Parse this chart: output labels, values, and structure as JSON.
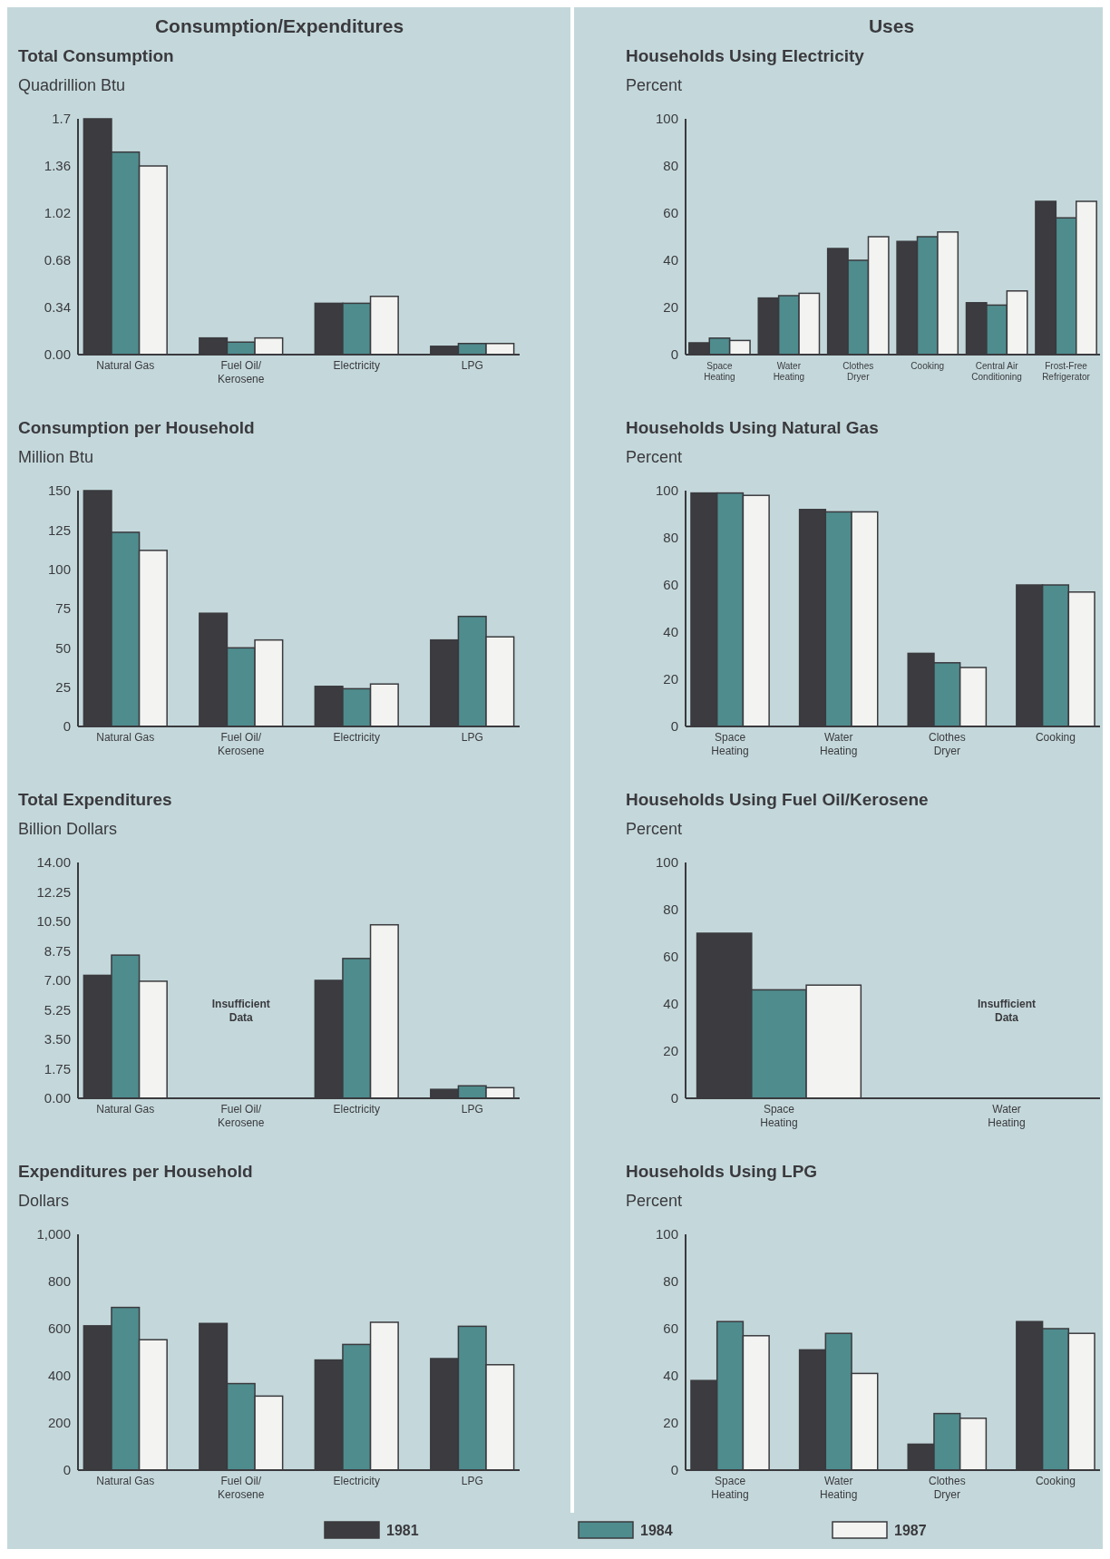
{
  "chart_data": [
    {
      "type": "bar",
      "title": "Total Consumption",
      "ylabel": "Quadrillion Btu",
      "annotations": [
        "Consumption/Expenditures"
      ],
      "categories": [
        "Natural Gas",
        "Fuel Oil/ Kerosene",
        "Electricity",
        "LPG"
      ],
      "series": [
        {
          "color": "#3b3b40",
          "values": [
            1.7,
            0.12,
            0.37,
            0.06
          ]
        },
        {
          "color": "#4f8c8e",
          "values": [
            1.46,
            0.09,
            0.37,
            0.08
          ]
        },
        {
          "color": "#f3f3f1",
          "values": [
            1.36,
            0.12,
            0.42,
            0.08
          ]
        }
      ],
      "ylim": [
        0,
        1.7
      ],
      "yticks": [
        {
          "value": 0,
          "label": "0.00"
        },
        0.34,
        0.68,
        1.02,
        1.36,
        1.7
      ]
    },
    {
      "type": "bar",
      "title": "Consumption per Household",
      "ylabel": "Million Btu",
      "categories": [
        "Natural Gas",
        "Fuel Oil/ Kerosene",
        "Electricity",
        "LPG"
      ],
      "series": [
        {
          "color": "#3b3b40",
          "values": [
            150,
            72,
            25.5,
            55
          ]
        },
        {
          "color": "#4f8c8e",
          "values": [
            123.5,
            50,
            24,
            70
          ]
        },
        {
          "color": "#f3f3f1",
          "values": [
            112,
            55,
            27,
            57
          ]
        }
      ],
      "ylim": [
        0,
        150
      ],
      "yticks": [
        0,
        25,
        50,
        75,
        100,
        125,
        150
      ]
    },
    {
      "type": "bar",
      "title": "Total Expenditures",
      "ylabel": "Billion Dollars",
      "annotations": [
        "Insufficient Data"
      ],
      "categories": [
        "Natural Gas",
        "Fuel Oil/ Kerosene",
        "Electricity",
        "LPG"
      ],
      "series": [
        {
          "color": "#3b3b40",
          "values": [
            7.3,
            null,
            7.0,
            0.53
          ]
        },
        {
          "color": "#4f8c8e",
          "values": [
            8.5,
            null,
            8.3,
            0.74
          ]
        },
        {
          "color": "#f3f3f1",
          "values": [
            6.95,
            null,
            10.3,
            0.63
          ]
        }
      ],
      "ylim": [
        0,
        14
      ],
      "yticks": [
        {
          "value": 0,
          "label": "0.00"
        },
        {
          "value": 1.75,
          "label": "1.75"
        },
        {
          "value": 3.5,
          "label": "3.50"
        },
        {
          "value": 5.25,
          "label": "5.25"
        },
        {
          "value": 7,
          "label": "7.00"
        },
        {
          "value": 8.75,
          "label": "8.75"
        },
        {
          "value": 10.5,
          "label": "10.50"
        },
        {
          "value": 12.25,
          "label": "12.25"
        },
        {
          "value": 14,
          "label": "14.00"
        }
      ]
    },
    {
      "type": "bar",
      "title": "Expenditures per Household",
      "ylabel": "Dollars",
      "legend": "bottom",
      "categories": [
        "Natural Gas",
        "Fuel Oil/ Kerosene",
        "Electricity",
        "LPG"
      ],
      "series": [
        {
          "name": "1981",
          "color": "#3b3b40",
          "values": [
            612,
            622,
            467,
            473
          ]
        },
        {
          "name": "1984",
          "color": "#4f8c8e",
          "values": [
            690,
            367,
            533,
            610
          ]
        },
        {
          "name": "1987",
          "color": "#f3f3f1",
          "values": [
            553,
            314,
            627,
            447
          ]
        }
      ],
      "ylim": [
        0,
        1000
      ],
      "yticks": [
        0,
        200,
        400,
        600,
        800,
        {
          "value": 1000,
          "label": "1,000"
        }
      ]
    },
    {
      "type": "bar",
      "title": "Households Using Electricity",
      "ylabel": "Percent",
      "annotations": [
        "Uses"
      ],
      "categories": [
        "Space Heating",
        "Water Heating",
        "Clothes Dryer",
        "Cooking",
        "Central Air Conditioning",
        "Frost-Free Refrigerator"
      ],
      "series": [
        {
          "color": "#3b3b40",
          "values": [
            5,
            24,
            45,
            48,
            22,
            65
          ]
        },
        {
          "color": "#4f8c8e",
          "values": [
            7,
            25,
            40,
            50,
            21,
            58
          ]
        },
        {
          "color": "#f3f3f1",
          "values": [
            6,
            26,
            50,
            52,
            27,
            65
          ]
        }
      ],
      "ylim": [
        0,
        100
      ],
      "yticks": [
        0,
        20,
        40,
        60,
        80,
        100
      ]
    },
    {
      "type": "bar",
      "title": "Households Using Natural Gas",
      "ylabel": "Percent",
      "categories": [
        "Space Heating",
        "Water Heating",
        "Clothes Dryer",
        "Cooking"
      ],
      "series": [
        {
          "color": "#3b3b40",
          "values": [
            99,
            92,
            31,
            60
          ]
        },
        {
          "color": "#4f8c8e",
          "values": [
            99,
            91,
            27,
            60
          ]
        },
        {
          "color": "#f3f3f1",
          "values": [
            98,
            91,
            25,
            57
          ]
        }
      ],
      "ylim": [
        0,
        100
      ],
      "yticks": [
        0,
        20,
        40,
        60,
        80,
        100
      ]
    },
    {
      "type": "bar",
      "title": "Households Using Fuel Oil/Kerosene",
      "ylabel": "Percent",
      "annotations": [
        "Insufficient Data"
      ],
      "categories": [
        "Space Heating",
        "Water Heating"
      ],
      "series": [
        {
          "color": "#3b3b40",
          "values": [
            70,
            null
          ]
        },
        {
          "color": "#4f8c8e",
          "values": [
            46,
            null
          ]
        },
        {
          "color": "#f3f3f1",
          "values": [
            48,
            null
          ]
        }
      ],
      "ylim": [
        0,
        100
      ],
      "yticks": [
        0,
        20,
        40,
        60,
        80,
        100
      ]
    },
    {
      "type": "bar",
      "title": "Households Using LPG",
      "ylabel": "Percent",
      "categories": [
        "Space Heating",
        "Water Heating",
        "Clothes Dryer",
        "Cooking"
      ],
      "series": [
        {
          "color": "#3b3b40",
          "values": [
            38,
            51,
            11,
            63
          ]
        },
        {
          "color": "#4f8c8e",
          "values": [
            63,
            58,
            24,
            60
          ]
        },
        {
          "color": "#f3f3f1",
          "values": [
            57,
            41,
            22,
            58
          ]
        }
      ],
      "ylim": [
        0,
        100
      ],
      "yticks": [
        0,
        20,
        40,
        60,
        80,
        100
      ]
    }
  ]
}
